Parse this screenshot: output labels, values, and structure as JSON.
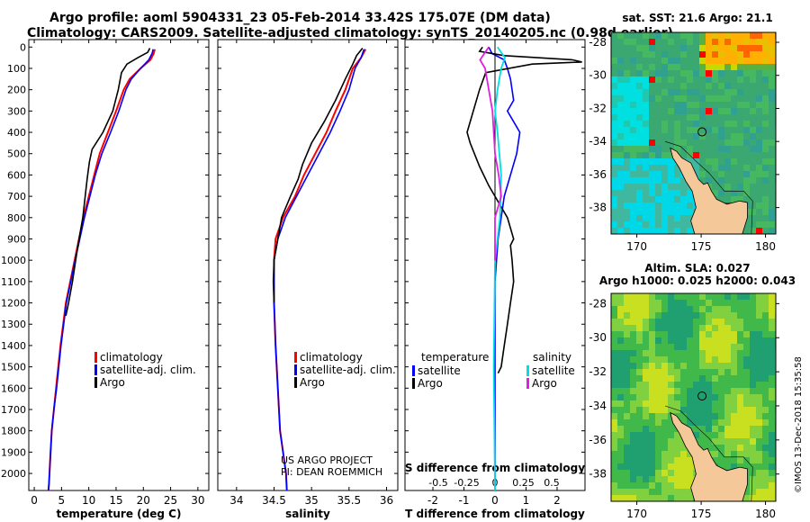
{
  "titles": {
    "line1": "Argo profile: aoml 5904331_23 05-Feb-2014 33.42S 175.07E (DM data)",
    "line2": "Climatology: CARS2009. Satellite-adjusted climatology: synTS_20140205.nc (0.98d earlier)"
  },
  "colors": {
    "climatology": "#ff0000",
    "satellite": "#0000ff",
    "argo": "#000000",
    "s_sat": "#00e0e0",
    "s_argo": "#e020e0",
    "land": "#f5c89a"
  },
  "chart_data": [
    {
      "type": "line",
      "name": "temperature-panel",
      "xlabel": "temperature (deg C)",
      "xlim": [
        -1,
        32
      ],
      "ylim": [
        2080,
        -35
      ],
      "xticks": [
        0,
        5,
        10,
        15,
        20,
        25,
        30
      ],
      "yticks": [
        0,
        100,
        200,
        300,
        400,
        500,
        600,
        700,
        800,
        900,
        1000,
        1100,
        1200,
        1300,
        1400,
        1500,
        1600,
        1700,
        1800,
        1900,
        2000
      ],
      "legend": [
        "climatology",
        "satellite-adj. clim.",
        "Argo"
      ],
      "series": [
        {
          "name": "climatology",
          "x": [
            22.1,
            21.9,
            21.3,
            19.5,
            17.5,
            16.4,
            15.0,
            13.5,
            12.0,
            11.0,
            10.0,
            9.0,
            7.4,
            5.8,
            4.8,
            4.0,
            3.6,
            3.2,
            3.0,
            2.8,
            2.7,
            2.6
          ],
          "depth": [
            10,
            30,
            60,
            100,
            150,
            200,
            300,
            400,
            500,
            600,
            700,
            800,
            1000,
            1200,
            1400,
            1600,
            1700,
            1800,
            1900,
            2000,
            2050,
            2080
          ]
        },
        {
          "name": "satellite-adj. clim.",
          "x": [
            21.8,
            21.6,
            21.0,
            19.5,
            17.8,
            16.8,
            15.5,
            14.0,
            12.4,
            11.2,
            10.2,
            9.2,
            7.5,
            5.9,
            4.9,
            4.1,
            3.6,
            3.2,
            3.0,
            2.8,
            2.7,
            2.6
          ],
          "depth": [
            10,
            30,
            60,
            100,
            150,
            200,
            300,
            400,
            500,
            600,
            700,
            800,
            1000,
            1200,
            1400,
            1600,
            1700,
            1800,
            1900,
            2000,
            2050,
            2080
          ]
        },
        {
          "name": "Argo",
          "x": [
            21.2,
            20.8,
            19.0,
            17.0,
            16.0,
            15.4,
            14.4,
            12.6,
            10.6,
            10.1,
            9.7,
            8.9,
            7.9,
            7.0,
            6.3,
            5.8
          ],
          "depth": [
            5,
            25,
            50,
            80,
            120,
            200,
            300,
            400,
            480,
            540,
            620,
            800,
            950,
            1100,
            1200,
            1260
          ]
        }
      ]
    },
    {
      "type": "line",
      "name": "salinity-panel",
      "xlabel": "salinity",
      "xlim": [
        33.75,
        36.15
      ],
      "ylim": [
        2080,
        -35
      ],
      "xticks": [
        34,
        34.5,
        35,
        35.5,
        36
      ],
      "legend": [
        "climatology",
        "satellite-adj. clim.",
        "Argo"
      ],
      "series": [
        {
          "name": "climatology",
          "x": [
            35.72,
            35.66,
            35.55,
            35.45,
            35.32,
            35.2,
            35.05,
            34.9,
            34.78,
            34.62,
            34.52,
            34.5,
            34.5,
            34.52,
            34.55,
            34.58,
            34.62,
            34.66,
            34.67
          ],
          "depth": [
            10,
            50,
            100,
            200,
            300,
            400,
            500,
            600,
            700,
            800,
            900,
            1000,
            1200,
            1400,
            1600,
            1800,
            1900,
            2000,
            2080
          ]
        },
        {
          "name": "satellite-adj. clim.",
          "x": [
            35.7,
            35.66,
            35.58,
            35.5,
            35.38,
            35.25,
            35.1,
            34.95,
            34.8,
            34.65,
            34.55,
            34.5,
            34.5,
            34.52,
            34.55,
            34.58,
            34.62,
            34.66,
            34.67
          ],
          "depth": [
            10,
            50,
            100,
            200,
            300,
            400,
            500,
            600,
            700,
            800,
            900,
            1000,
            1200,
            1400,
            1600,
            1800,
            1900,
            2000,
            2080
          ]
        },
        {
          "name": "Argo",
          "x": [
            35.68,
            35.6,
            35.55,
            35.45,
            35.32,
            35.17,
            35.0,
            34.88,
            34.82,
            34.72,
            34.6,
            34.55,
            34.5,
            34.49,
            34.5
          ],
          "depth": [
            5,
            40,
            80,
            150,
            250,
            350,
            450,
            550,
            620,
            700,
            800,
            900,
            1000,
            1100,
            1200
          ]
        }
      ]
    },
    {
      "type": "line",
      "name": "difference-panel",
      "xlabel": "T difference from climatology",
      "xlabel_top": "S difference from climatology",
      "xlim": [
        -2.9,
        2.9
      ],
      "ylim": [
        2080,
        -35
      ],
      "xticks": [
        -2,
        -1,
        0,
        1,
        2
      ],
      "xticks_top": [
        "-0.5",
        "-0.25",
        "0",
        "0.25",
        "0.5"
      ],
      "legend_left": [
        "temperature",
        "satellite",
        "Argo"
      ],
      "legend_right": [
        "salinity",
        "satellite",
        "Argo"
      ],
      "series": [
        {
          "name": "temperature satellite",
          "x": [
            -0.2,
            -0.1,
            0.3,
            0.4,
            0.5,
            0.6,
            0.4,
            0.6,
            0.8,
            0.7,
            0.5,
            0.3,
            0.2,
            0.1,
            0.05,
            0.0,
            0.0,
            0.0
          ],
          "depth": [
            0,
            30,
            60,
            100,
            150,
            250,
            300,
            350,
            400,
            500,
            600,
            700,
            800,
            900,
            1000,
            1100,
            1200,
            2080
          ]
        },
        {
          "name": "temperature Argo",
          "x": [
            -0.4,
            -0.5,
            0.3,
            2.5,
            2.8,
            1.2,
            -0.3,
            -0.5,
            -0.9,
            -0.8,
            -0.5,
            -0.2,
            0.0,
            0.4,
            0.6,
            0.5,
            0.55,
            0.6,
            0.5,
            0.4,
            0.3,
            0.2,
            0.1
          ],
          "depth": [
            0,
            20,
            40,
            60,
            70,
            80,
            120,
            200,
            400,
            450,
            560,
            650,
            700,
            800,
            900,
            930,
            1000,
            1100,
            1200,
            1300,
            1400,
            1500,
            1530
          ]
        },
        {
          "name": "salinity satellite",
          "x": [
            0.02,
            0.08,
            0.05,
            0.02,
            0.0,
            0.02,
            0.05,
            0.04,
            0.0,
            -0.01,
            0.0
          ],
          "depth": [
            0,
            50,
            100,
            200,
            300,
            400,
            600,
            800,
            1000,
            1500,
            2080
          ]
        },
        {
          "name": "salinity Argo",
          "x": [
            -0.05,
            -0.12,
            -0.08,
            -0.05,
            -0.02,
            0.0,
            0.03,
            0.05,
            0.0,
            0.0
          ],
          "depth": [
            0,
            60,
            100,
            200,
            300,
            500,
            600,
            700,
            800,
            1000
          ]
        }
      ]
    },
    {
      "type": "heatmap",
      "name": "sst-map",
      "title": "sat. SST: 21.6 Argo: 21.1",
      "xticks": [
        170,
        175,
        180
      ],
      "yticks": [
        -28,
        -30,
        -32,
        -34,
        -36,
        -38
      ],
      "xlim": [
        168,
        180.8
      ],
      "ylim": [
        -39.6,
        -27.4
      ],
      "marker": {
        "lon": 175.07,
        "lat": -33.42
      }
    },
    {
      "type": "heatmap",
      "name": "sla-map",
      "title": "Altim. SLA: 0.027",
      "subtitle": "Argo h1000: 0.025 h2000: 0.043",
      "xticks": [
        170,
        175,
        180
      ],
      "yticks": [
        -28,
        -30,
        -32,
        -34,
        -36,
        -38
      ],
      "xlim": [
        168,
        180.8
      ],
      "ylim": [
        -39.6,
        -27.4
      ],
      "marker": {
        "lon": 175.07,
        "lat": -33.42
      }
    }
  ],
  "annotations": {
    "project": "US ARGO PROJECT",
    "pi": "PI: DEAN ROEMMICH",
    "copyright": "©IMOS 13-Dec-2018 15:35:58"
  }
}
